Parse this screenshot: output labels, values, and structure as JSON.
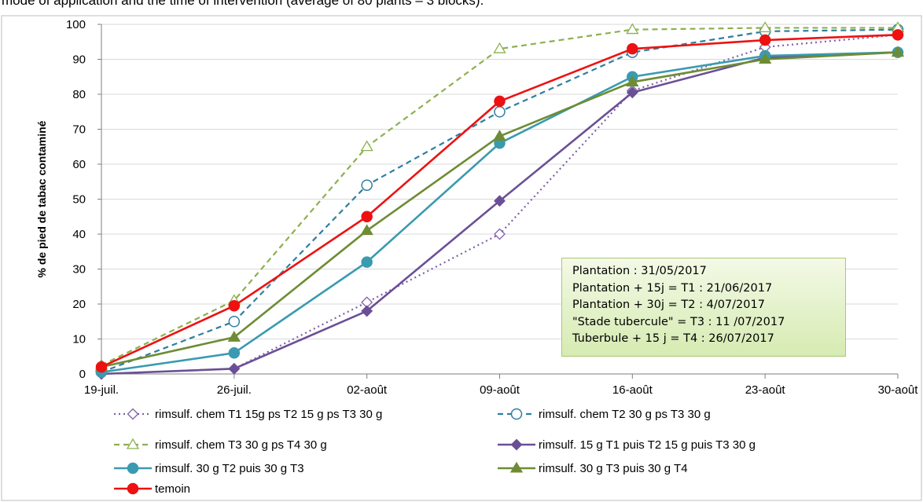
{
  "caption": "mode of application and the time of intervention (average of 80 plants – 3 blocks).",
  "info_box": {
    "lines": [
      "Plantation :  31/05/2017",
      "Plantation  + 15j = T1 : 21/06/2017",
      "Plantation + 30j = T2 : 4/07/2017",
      "\"Stade tubercule\" = T3 :  11 /07/2017",
      "Tuberbule + 15 j = T4 : 26/07/2017"
    ]
  },
  "chart_data": {
    "type": "line",
    "title": "",
    "xlabel": "",
    "ylabel": "% de pied de tabac contaminé",
    "ylim": [
      0,
      100
    ],
    "y_ticks": [
      0,
      10,
      20,
      30,
      40,
      50,
      60,
      70,
      80,
      90,
      100
    ],
    "x_tick_labels": [
      "19-juil.",
      "26-juil.",
      "02-août",
      "09-août",
      "16-août",
      "23-août",
      "30-août"
    ],
    "xlim": [
      "2017-07-19",
      "2017-08-30"
    ],
    "grid": true,
    "legend_position": "bottom",
    "x": [
      "2017-07-19",
      "2017-07-26",
      "2017-08-02",
      "2017-08-09",
      "2017-08-16",
      "2017-08-23",
      "2017-08-30"
    ],
    "series": [
      {
        "name": "rimsulf. chem T1 15g ps T2 15 g ps T3 30 g",
        "values": [
          0,
          1.5,
          20.5,
          40,
          81,
          93.5,
          97
        ],
        "color": "#7f5fa8",
        "dash": "dotted",
        "marker": "diamond-open"
      },
      {
        "name": "rimsulf. chem T2 30 g ps T3 30 g",
        "values": [
          0.5,
          15,
          54,
          75,
          92,
          98,
          98.5
        ],
        "color": "#2f7f9f",
        "dash": "dashed",
        "marker": "circle-open"
      },
      {
        "name": "rimsulf. chem T3 30 g ps T4 30 g",
        "values": [
          2.5,
          21,
          65,
          93,
          98.5,
          99,
          99
        ],
        "color": "#8db050",
        "dash": "dashed",
        "marker": "triangle-open"
      },
      {
        "name": "rimsulf. 15 g T1 puis T2 15 g puis T3 30 g",
        "values": [
          0,
          1.5,
          18,
          49.5,
          80.5,
          90.5,
          92
        ],
        "color": "#6b4f96",
        "dash": "solid",
        "marker": "diamond"
      },
      {
        "name": "rimsulf. 30 g T2 puis 30 g T3",
        "values": [
          0.5,
          6,
          32,
          66,
          85,
          91,
          92
        ],
        "color": "#3a9ab0",
        "dash": "solid",
        "marker": "circle"
      },
      {
        "name": "rimsulf. 30 g T3 puis 30 g T4",
        "values": [
          2,
          10.5,
          41,
          68,
          83.5,
          90,
          92
        ],
        "color": "#6e8c34",
        "dash": "solid",
        "marker": "triangle"
      },
      {
        "name": "temoin",
        "values": [
          2,
          19.5,
          45,
          78,
          93,
          95.5,
          97
        ],
        "color": "#ee1111",
        "dash": "solid",
        "marker": "circle"
      }
    ]
  }
}
